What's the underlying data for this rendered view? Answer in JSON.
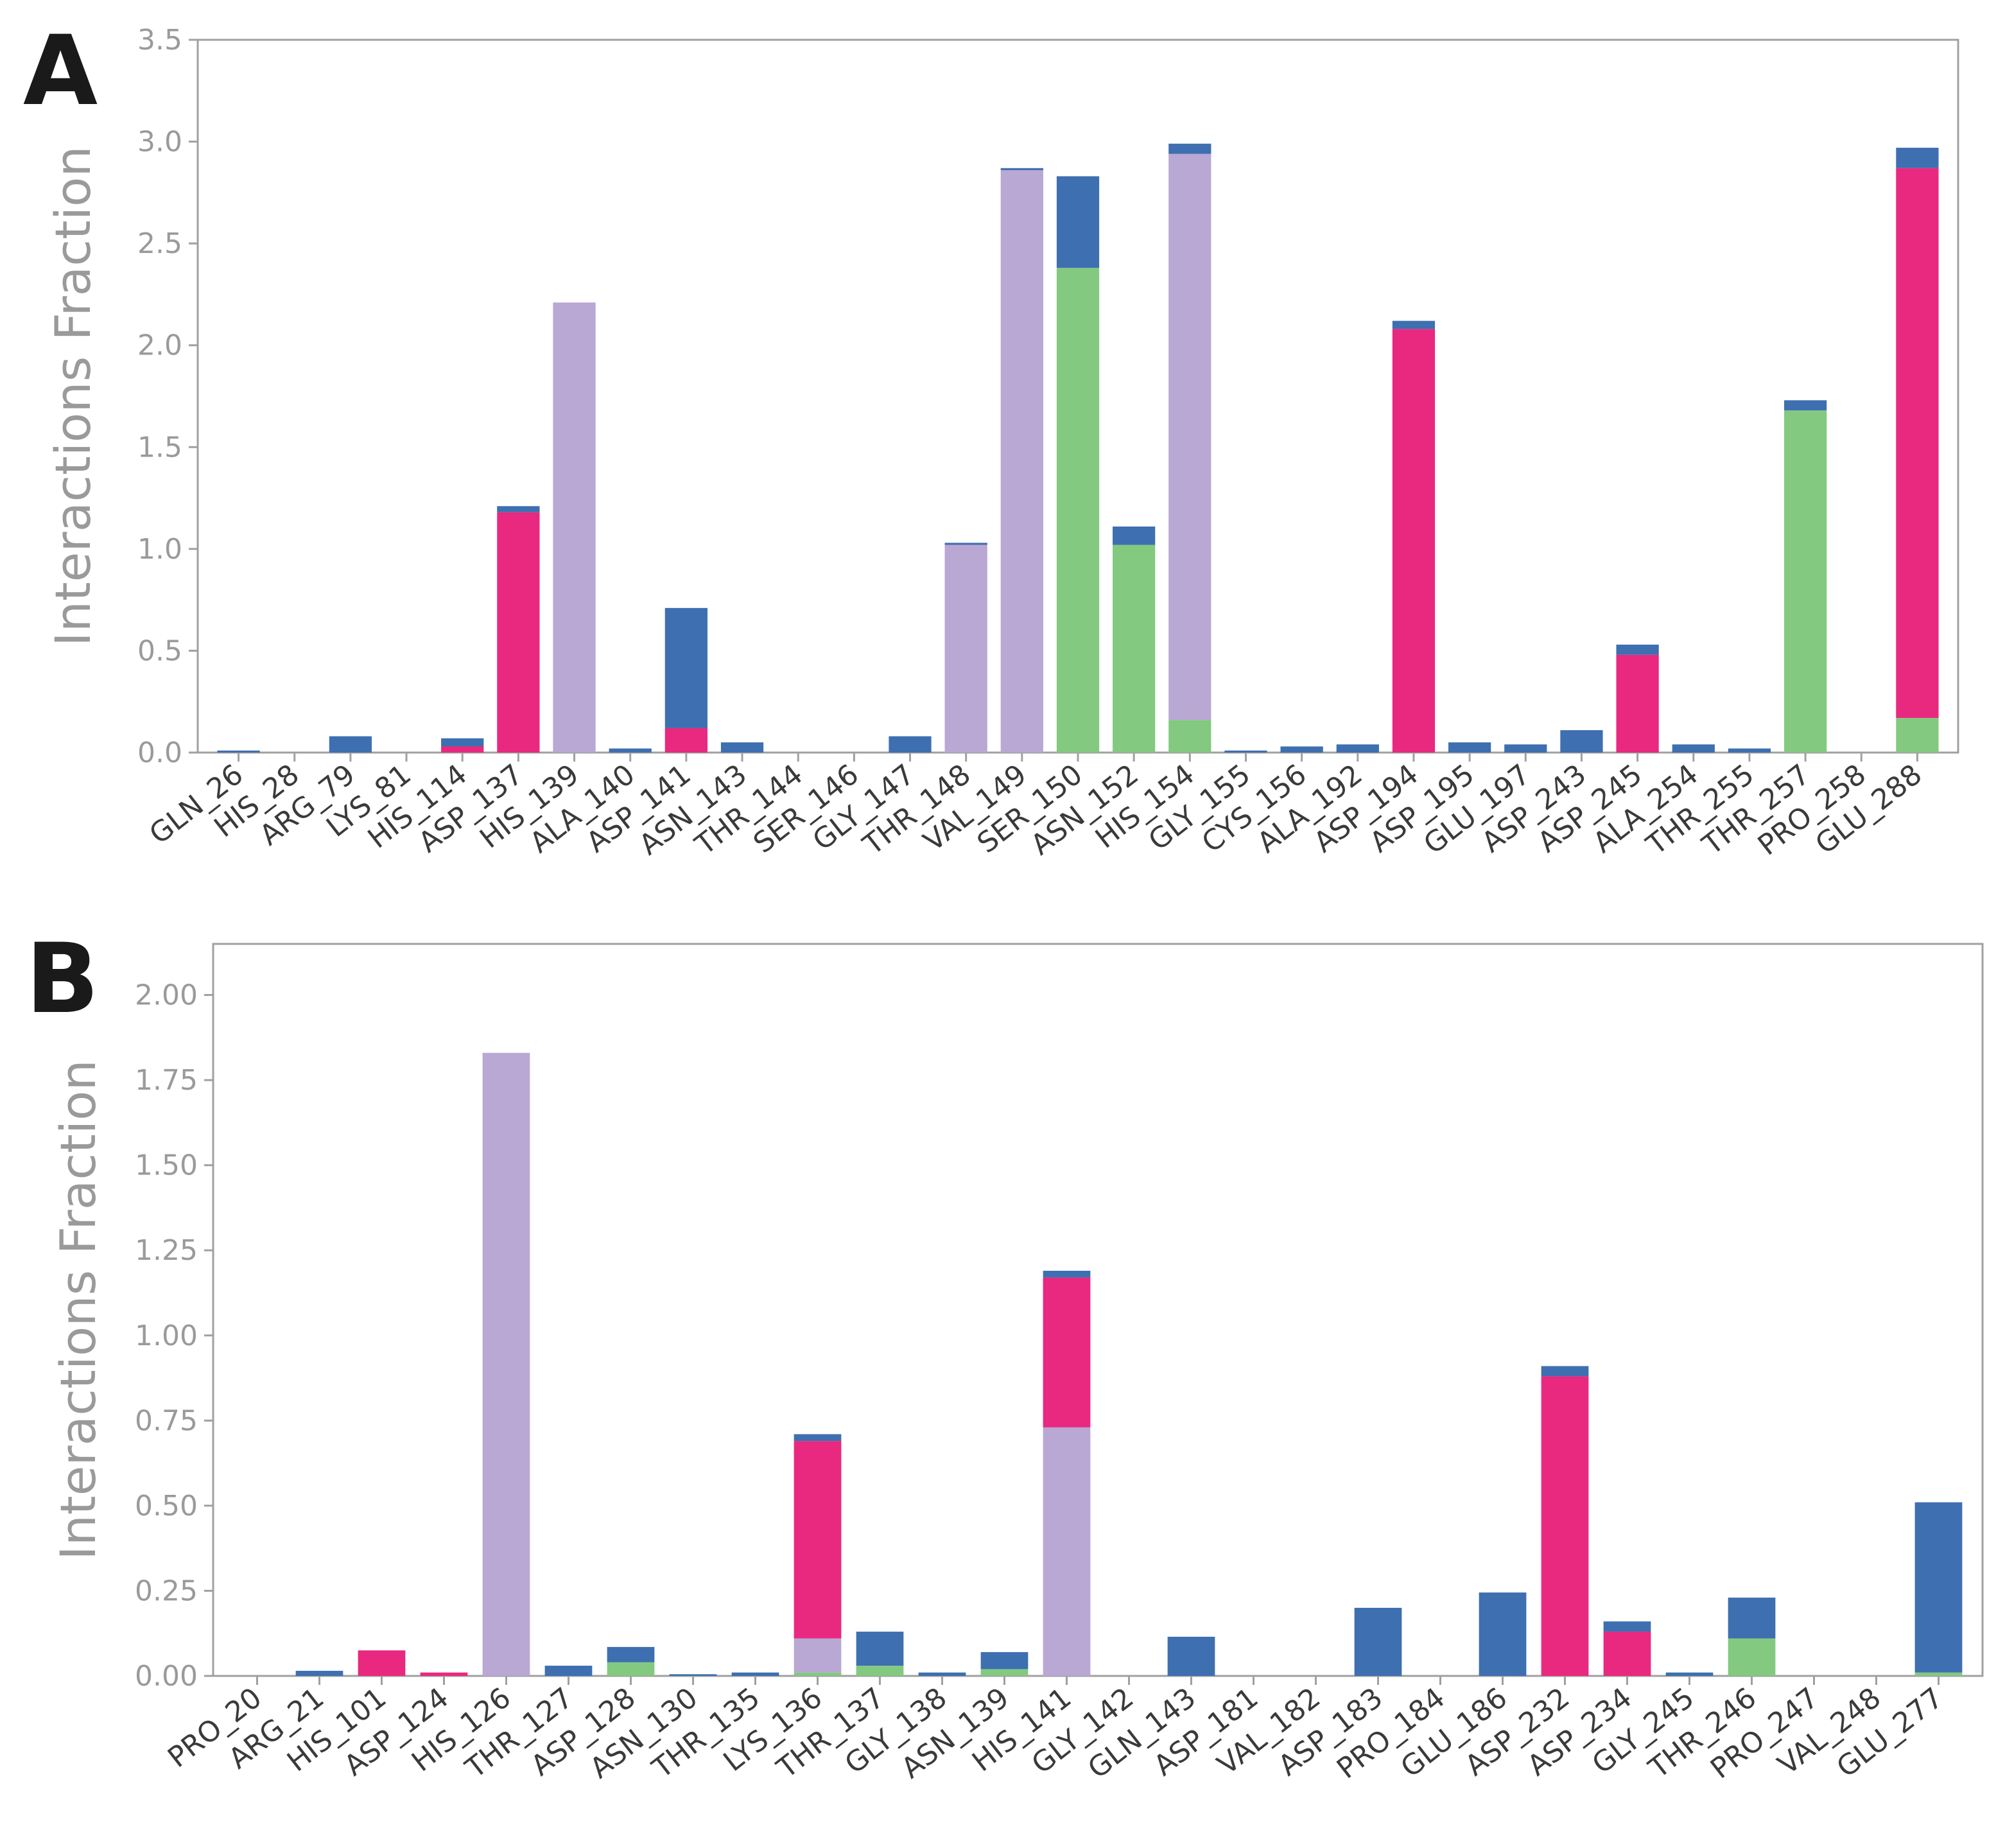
{
  "colors": {
    "hydrogen_bond": "#83c97f",
    "hydrophobic": "#b9a7d4",
    "ionic": "#e9287f",
    "water_bridge": "#3e6fb0",
    "axis_frame": "#a0a0a0"
  },
  "chart_data": [
    {
      "panel": "A",
      "type": "bar",
      "stacked": true,
      "ylabel": "Interactions Fraction",
      "ylim": [
        0,
        3.5
      ],
      "yticks": [
        "0.0",
        "0.5",
        "1.0",
        "1.5",
        "2.0",
        "2.5",
        "3.0",
        "3.5"
      ],
      "categories": [
        "GLN_26",
        "HIS_28",
        "ARG_79",
        "LYS_81",
        "HIS_114",
        "ASP_137",
        "HIS_139",
        "ALA_140",
        "ASP_141",
        "ASN_143",
        "THR_144",
        "SER_146",
        "GLY_147",
        "THR_148",
        "VAL_149",
        "SER_150",
        "ASN_152",
        "HIS_154",
        "GLY_155",
        "CYS_156",
        "ALA_192",
        "ASP_194",
        "ASP_195",
        "GLU_197",
        "ASP_243",
        "ASP_245",
        "ALA_254",
        "THR_255",
        "THR_257",
        "PRO_258",
        "GLU_288"
      ],
      "series": [
        {
          "key": "hydrogen_bond",
          "values": [
            0,
            0,
            0,
            0,
            0,
            0,
            0,
            0,
            0,
            0,
            0,
            0,
            0,
            0,
            0,
            2.38,
            1.02,
            0.16,
            0,
            0,
            0,
            0,
            0,
            0,
            0,
            0,
            0,
            0,
            1.68,
            0,
            0.17
          ]
        },
        {
          "key": "hydrophobic",
          "values": [
            0,
            0,
            0,
            0,
            0,
            0,
            2.21,
            0,
            0,
            0,
            0,
            0,
            0,
            1.02,
            2.86,
            0,
            0,
            2.78,
            0,
            0,
            0,
            0,
            0,
            0,
            0,
            0,
            0,
            0,
            0,
            0,
            0
          ]
        },
        {
          "key": "ionic",
          "values": [
            0,
            0,
            0,
            0,
            0.03,
            1.18,
            0,
            0,
            0.12,
            0,
            0,
            0,
            0,
            0,
            0,
            0,
            0,
            0,
            0,
            0,
            0,
            2.08,
            0,
            0,
            0,
            0.48,
            0,
            0,
            0,
            0,
            2.7
          ]
        },
        {
          "key": "water_bridge",
          "values": [
            0.01,
            0,
            0.08,
            0,
            0.04,
            0.03,
            0,
            0.02,
            0.59,
            0.05,
            0,
            0,
            0.08,
            0.01,
            0.01,
            0.45,
            0.09,
            0.05,
            0.01,
            0.03,
            0.04,
            0.04,
            0.05,
            0.04,
            0.11,
            0.05,
            0.04,
            0.02,
            0.05,
            0,
            0.1
          ]
        }
      ]
    },
    {
      "panel": "B",
      "type": "bar",
      "stacked": true,
      "ylabel": "Interactions Fraction",
      "ylim": [
        0,
        2.15
      ],
      "yticks": [
        "0.00",
        "0.25",
        "0.50",
        "0.75",
        "1.00",
        "1.25",
        "1.50",
        "1.75",
        "2.00"
      ],
      "categories": [
        "PRO_20",
        "ARG_21",
        "HIS_101",
        "ASP_124",
        "HIS_126",
        "THR_127",
        "ASP_128",
        "ASN_130",
        "THR_135",
        "LYS_136",
        "THR_137",
        "GLY_138",
        "ASN_139",
        "HIS_141",
        "GLY_142",
        "GLN_143",
        "ASP_181",
        "VAL_182",
        "ASP_183",
        "PRO_184",
        "GLU_186",
        "ASP_232",
        "ASP_234",
        "GLY_245",
        "THR_246",
        "PRO_247",
        "VAL_248",
        "GLU_277"
      ],
      "series": [
        {
          "key": "hydrogen_bond",
          "values": [
            0,
            0,
            0,
            0,
            0,
            0,
            0.04,
            0,
            0,
            0.01,
            0.03,
            0,
            0.02,
            0,
            0,
            0,
            0,
            0,
            0,
            0,
            0,
            0,
            0,
            0,
            0.11,
            0,
            0,
            0.01
          ]
        },
        {
          "key": "hydrophobic",
          "values": [
            0,
            0,
            0,
            0,
            1.83,
            0,
            0,
            0,
            0,
            0.1,
            0,
            0,
            0,
            0.73,
            0,
            0,
            0,
            0,
            0,
            0,
            0,
            0,
            0,
            0,
            0,
            0,
            0,
            0
          ]
        },
        {
          "key": "ionic",
          "values": [
            0,
            0,
            0.075,
            0.01,
            0,
            0,
            0,
            0,
            0,
            0.58,
            0,
            0,
            0,
            0.44,
            0,
            0,
            0,
            0,
            0,
            0,
            0,
            0.88,
            0.13,
            0,
            0,
            0,
            0,
            0
          ]
        },
        {
          "key": "water_bridge",
          "values": [
            0,
            0.015,
            0,
            0,
            0,
            0.03,
            0.045,
            0.005,
            0.01,
            0.02,
            0.1,
            0.01,
            0.05,
            0.02,
            0,
            0.115,
            0,
            0,
            0.2,
            0,
            0.245,
            0.03,
            0.03,
            0.01,
            0.12,
            0,
            0,
            0.5
          ]
        }
      ]
    }
  ]
}
